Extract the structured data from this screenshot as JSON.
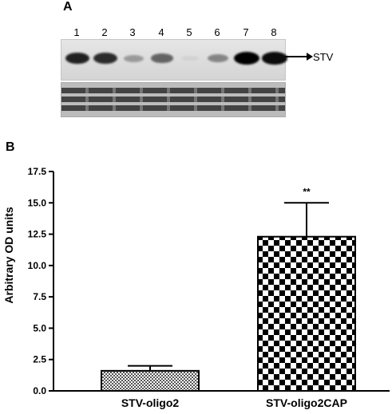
{
  "panel_a": {
    "label": "A",
    "lanes": [
      "1",
      "2",
      "3",
      "4",
      "5",
      "6",
      "7",
      "8"
    ],
    "band_intensity": [
      0.85,
      0.8,
      0.3,
      0.55,
      0.05,
      0.4,
      1.0,
      0.95
    ],
    "band_label": "STV"
  },
  "panel_b": {
    "label": "B"
  },
  "chart_data": {
    "type": "bar",
    "categories": [
      "STV-oligo2",
      "STV-oligo2CAP"
    ],
    "values": [
      1.6,
      12.3
    ],
    "errors": [
      0.4,
      2.7
    ],
    "annotations": [
      "",
      "**"
    ],
    "ylabel": "Arbitrary OD units",
    "xlabel": "",
    "ylim": [
      0,
      17.5
    ],
    "yticks": [
      "0.0",
      "2.5",
      "5.0",
      "7.5",
      "10.0",
      "12.5",
      "15.0",
      "17.5"
    ],
    "grid": false
  }
}
